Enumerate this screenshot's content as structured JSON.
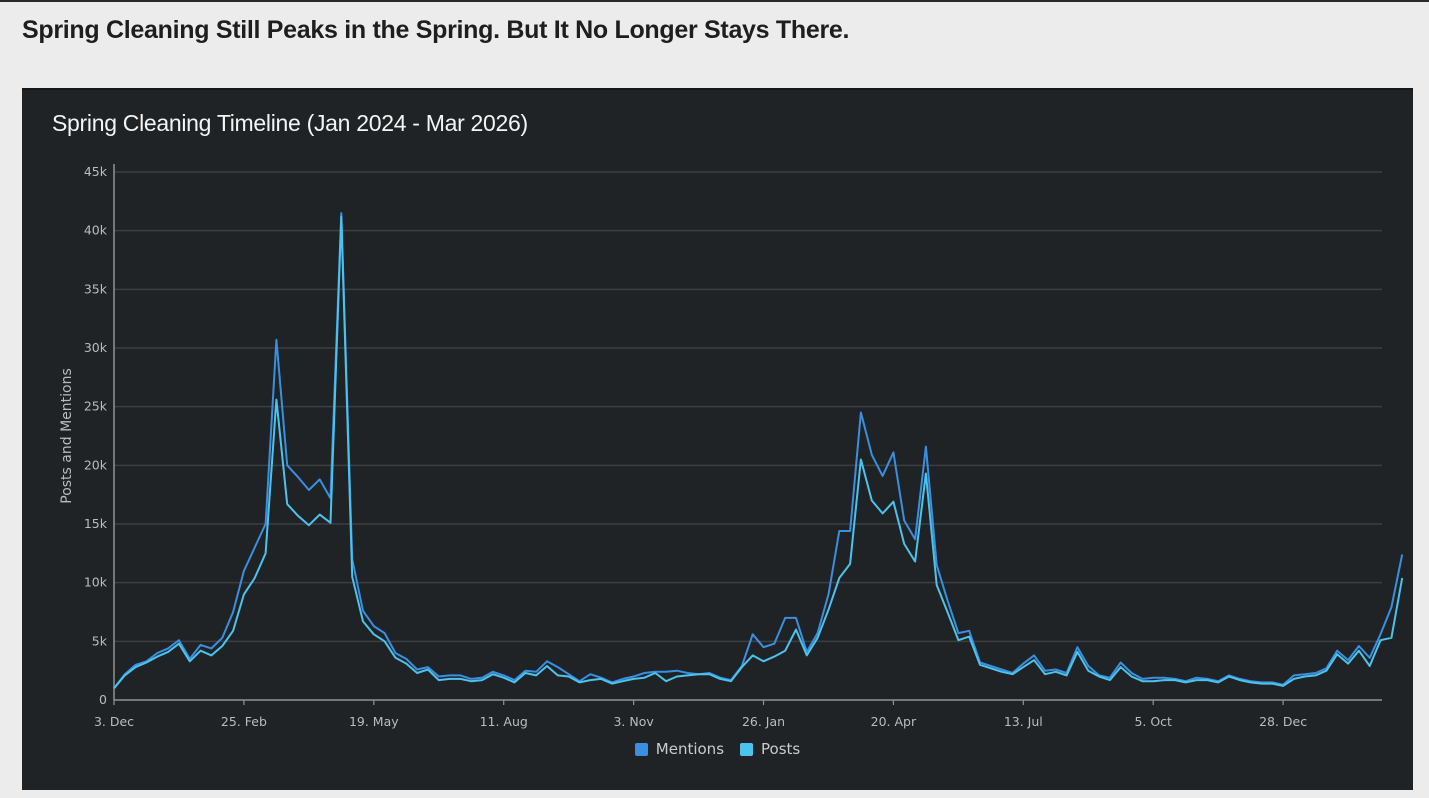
{
  "page": {
    "headline": "Spring Cleaning Still Peaks in the Spring. But It No Longer Stays There."
  },
  "colors": {
    "mentions": "#3a8fe0",
    "posts": "#4cc3ec",
    "grid": "#3b3f43",
    "axis": "#8f9396",
    "card_bg": "#202326",
    "page_bg": "#ececec"
  },
  "legend": {
    "mentions_label": "Mentions",
    "posts_label": "Posts"
  },
  "chart_data": {
    "type": "line",
    "title": "Spring Cleaning Timeline (Jan 2024 - Mar 2026)",
    "xlabel": "",
    "ylabel": "Posts and Mentions",
    "ylim": [
      0,
      45000
    ],
    "yticks": [
      0,
      5000,
      10000,
      15000,
      20000,
      25000,
      30000,
      35000,
      40000,
      45000
    ],
    "ytick_labels": [
      "0",
      "5k",
      "10k",
      "15k",
      "20k",
      "25k",
      "30k",
      "35k",
      "40k",
      "45k"
    ],
    "xtick_labels": [
      "3. Dec",
      "25. Feb",
      "19. May",
      "11. Aug",
      "3. Nov",
      "26. Jan",
      "20. Apr",
      "13. Jul",
      "5. Oct",
      "28. Dec"
    ],
    "x_interval": "weekly",
    "grid": true,
    "legend_position": "bottom-center",
    "series": [
      {
        "name": "Mentions",
        "values": [
          1000,
          2200,
          3000,
          3300,
          4000,
          4400,
          5100,
          3500,
          4700,
          4400,
          5300,
          7500,
          11000,
          13000,
          15000,
          30700,
          20000,
          19000,
          17900,
          18800,
          17200,
          41500,
          12000,
          7600,
          6300,
          5700,
          4000,
          3500,
          2600,
          2800,
          2000,
          2100,
          2100,
          1800,
          1900,
          2400,
          2100,
          1700,
          2500,
          2400,
          3300,
          2800,
          2200,
          1600,
          2200,
          1900,
          1500,
          1800,
          2000,
          2300,
          2400,
          2400,
          2500,
          2300,
          2200,
          2300,
          1900,
          1700,
          2900,
          5600,
          4500,
          4800,
          7000,
          7000,
          4100,
          5700,
          9000,
          14400,
          14400,
          24500,
          20900,
          19100,
          21100,
          15300,
          13700,
          21600,
          11500,
          8500,
          5700,
          5900,
          3200,
          2900,
          2600,
          2300,
          3100,
          3800,
          2500,
          2600,
          2300,
          4500,
          2900,
          2100,
          1900,
          3200,
          2300,
          1800,
          1900,
          1900,
          1800,
          1600,
          1900,
          1800,
          1600,
          2100,
          1800,
          1600,
          1500,
          1500,
          1300,
          2100,
          2200,
          2300,
          2700,
          4200,
          3400,
          4600,
          3600,
          5600,
          7900,
          12400
        ],
        "color": "#3a8fe0"
      },
      {
        "name": "Posts",
        "values": [
          1000,
          2100,
          2800,
          3200,
          3700,
          4100,
          4800,
          3300,
          4200,
          3800,
          4600,
          5900,
          9000,
          10400,
          12500,
          25600,
          16700,
          15700,
          14900,
          15800,
          15100,
          41200,
          10500,
          6700,
          5600,
          5000,
          3600,
          3100,
          2300,
          2600,
          1700,
          1800,
          1800,
          1600,
          1700,
          2200,
          1900,
          1500,
          2300,
          2100,
          2900,
          2100,
          2000,
          1500,
          1700,
          1800,
          1400,
          1600,
          1800,
          1900,
          2300,
          1600,
          2000,
          2100,
          2200,
          2200,
          1800,
          1600,
          2800,
          3800,
          3300,
          3700,
          4200,
          6000,
          3800,
          5300,
          7700,
          10400,
          11600,
          20500,
          17000,
          15900,
          16900,
          13300,
          11800,
          19300,
          9800,
          7500,
          5100,
          5400,
          3000,
          2700,
          2400,
          2200,
          2800,
          3400,
          2200,
          2400,
          2100,
          4100,
          2500,
          2000,
          1700,
          2800,
          2000,
          1600,
          1600,
          1700,
          1700,
          1500,
          1700,
          1700,
          1500,
          2000,
          1700,
          1500,
          1400,
          1400,
          1200,
          1800,
          2000,
          2100,
          2500,
          3900,
          3100,
          4200,
          2900,
          5100,
          5300,
          10400
        ],
        "color": "#4cc3ec"
      }
    ]
  }
}
